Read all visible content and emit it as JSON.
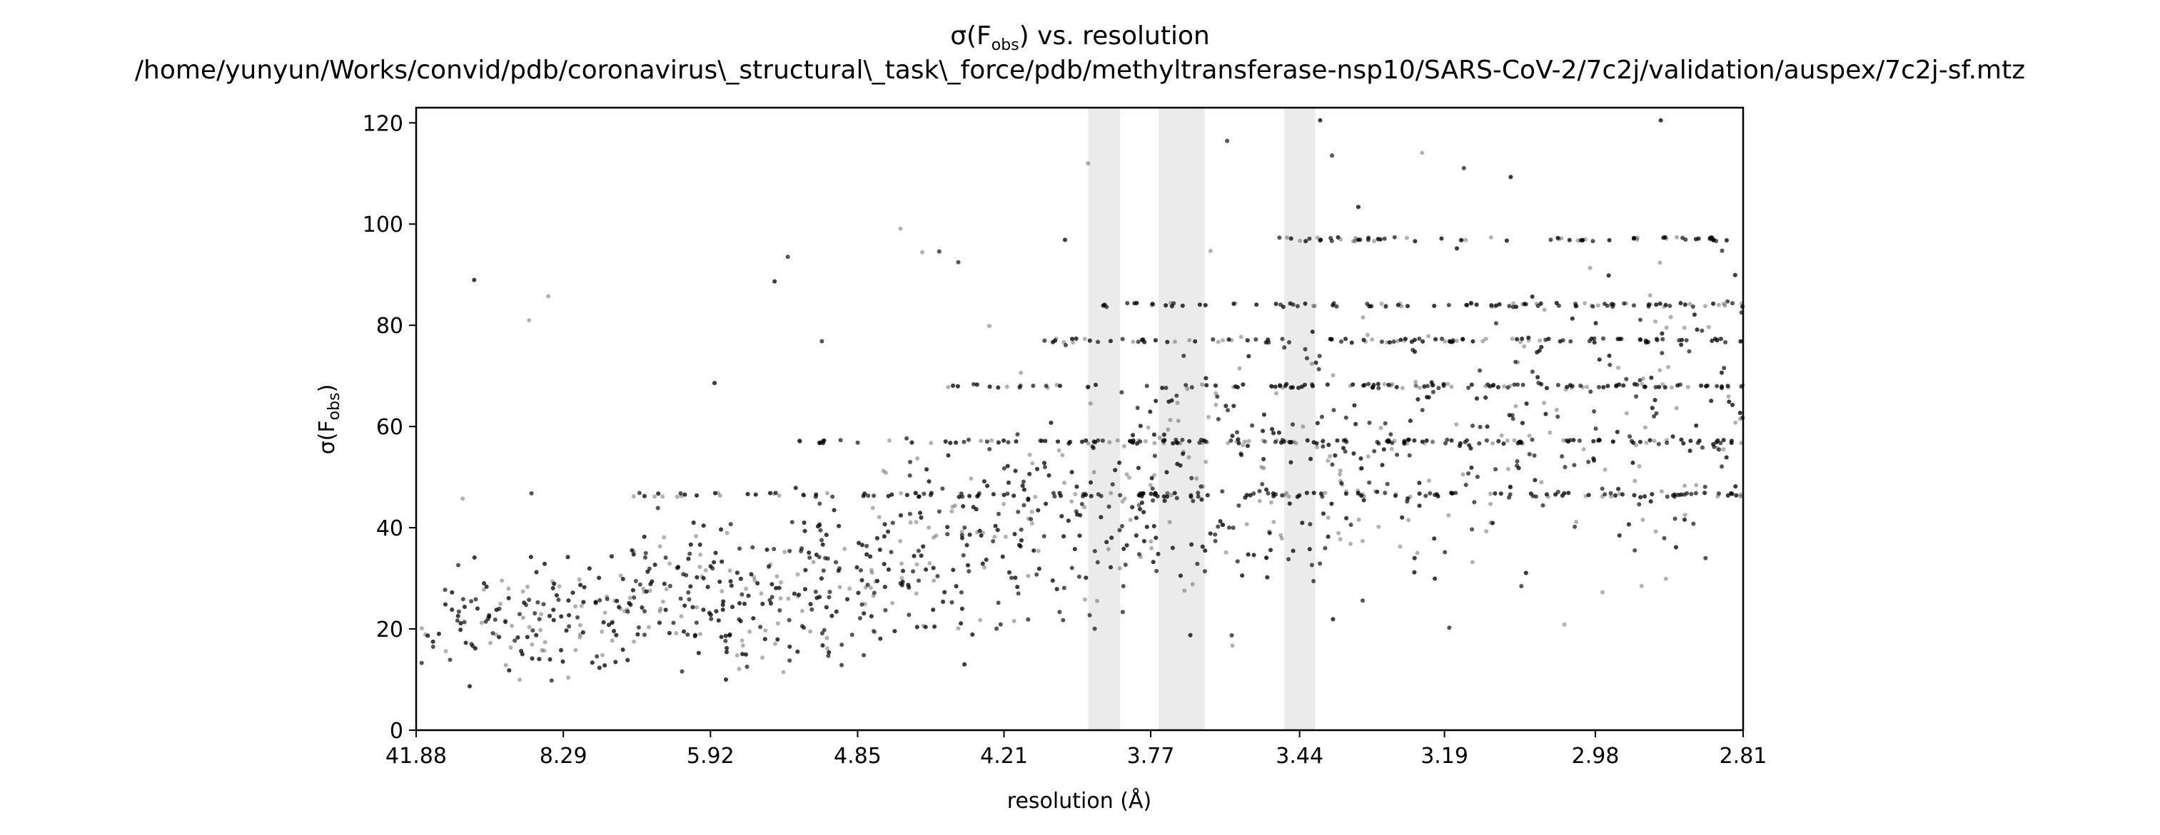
{
  "chart_data": {
    "type": "scatter",
    "title": {
      "symbol": "σ(F",
      "subscript": "obs",
      "suffix": ") vs. resolution",
      "path": "/home/yunyun/Works/convid/pdb/coronavirus\\_structural\\_task\\_force/pdb/methyltransferase-nsp10/SARS-CoV-2/7c2j/validation/auspex/7c2j-sf.mtz"
    },
    "xlabel": "resolution (Å)",
    "ylabel": {
      "symbol": "σ(F",
      "subscript": "obs",
      "suffix": ")"
    },
    "x_scale": "inverse-square resolution (1/d²)",
    "xlim": [
      41.88,
      2.81
    ],
    "ylim": [
      0,
      123
    ],
    "x_ticks": [
      "41.88",
      "8.29",
      "5.92",
      "4.85",
      "4.21",
      "3.77",
      "3.44",
      "3.19",
      "2.98",
      "2.81"
    ],
    "y_ticks": [
      0,
      20,
      40,
      60,
      80,
      100,
      120
    ],
    "grid": false,
    "legend": "none",
    "point_color": "#000000",
    "point_opacity": 0.3,
    "ice_ring_color": "#ebebeb",
    "ice_rings": [
      {
        "from": 3.94,
        "to": 3.85
      },
      {
        "from": 3.75,
        "to": 3.64
      },
      {
        "from": 3.47,
        "to": 3.41
      }
    ],
    "series": [
      {
        "values_description_bins": [
          {
            "resolution": 41.88,
            "sigma_median": 20,
            "sigma_spread": 8
          },
          {
            "resolution": 8.29,
            "sigma_median": 22,
            "sigma_spread": 10
          },
          {
            "resolution": 5.92,
            "sigma_median": 26,
            "sigma_spread": 12
          },
          {
            "resolution": 4.85,
            "sigma_median": 30,
            "sigma_spread": 14
          },
          {
            "resolution": 4.21,
            "sigma_median": 38,
            "sigma_spread": 16
          },
          {
            "resolution": 3.77,
            "sigma_median": 45,
            "sigma_spread": 20
          },
          {
            "resolution": 3.44,
            "sigma_median": 50,
            "sigma_spread": 22
          },
          {
            "resolution": 3.19,
            "sigma_median": 55,
            "sigma_spread": 24
          },
          {
            "resolution": 2.98,
            "sigma_median": 60,
            "sigma_spread": 24
          },
          {
            "resolution": 2.81,
            "sigma_median": 62,
            "sigma_spread": 24
          }
        ],
        "quantized_levels": [
          46.5,
          57,
          68,
          77,
          84,
          97
        ]
      }
    ]
  }
}
